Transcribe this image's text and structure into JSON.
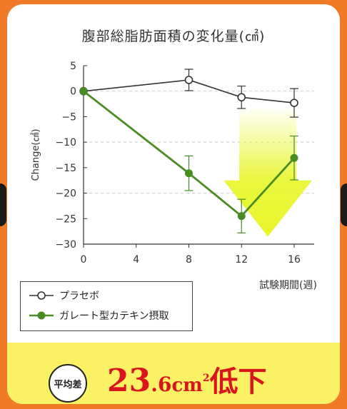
{
  "chart_data": {
    "type": "line",
    "title": "腹部総脂肪面積の変化量(㎠)",
    "ylabel": "Change(㎠)",
    "xlabel": "試験期間(週)",
    "x": [
      0,
      4,
      8,
      12,
      16
    ],
    "x_ticks": [
      "0",
      "4",
      "8",
      "12",
      "16"
    ],
    "y_ticks": [
      "5",
      "0",
      "−5",
      "−10",
      "−15",
      "−20",
      "−25",
      "−30"
    ],
    "ylim": [
      -30,
      5
    ],
    "xlim": [
      0,
      18
    ],
    "grid": "dashed horizontal at 0, -10, -20",
    "series": [
      {
        "name": "プラセボ",
        "color": "#333333",
        "marker": "open-circle",
        "points": [
          {
            "x": 0,
            "y": 0,
            "err": 0
          },
          {
            "x": 8,
            "y": 2.2,
            "err": 2.1
          },
          {
            "x": 12,
            "y": -1.2,
            "err": 2.2
          },
          {
            "x": 16,
            "y": -2.3,
            "err": 2.8
          }
        ]
      },
      {
        "name": "ガレート型カテキン摂取",
        "color": "#4a8c24",
        "marker": "filled-circle",
        "points": [
          {
            "x": 0,
            "y": 0,
            "err": 0
          },
          {
            "x": 8,
            "y": -16.1,
            "err": 3.4
          },
          {
            "x": 12,
            "y": -24.5,
            "err": 3.3
          },
          {
            "x": 16,
            "y": -13.1,
            "err": 4.3
          }
        ]
      }
    ],
    "annotation": {
      "type": "down-arrow",
      "color": "#e8f52a"
    }
  },
  "banner": {
    "badge": "平均差",
    "value_int": "23",
    "value_dec": ".6",
    "unit": "cm",
    "unit_sup": "2",
    "word": "低下"
  }
}
